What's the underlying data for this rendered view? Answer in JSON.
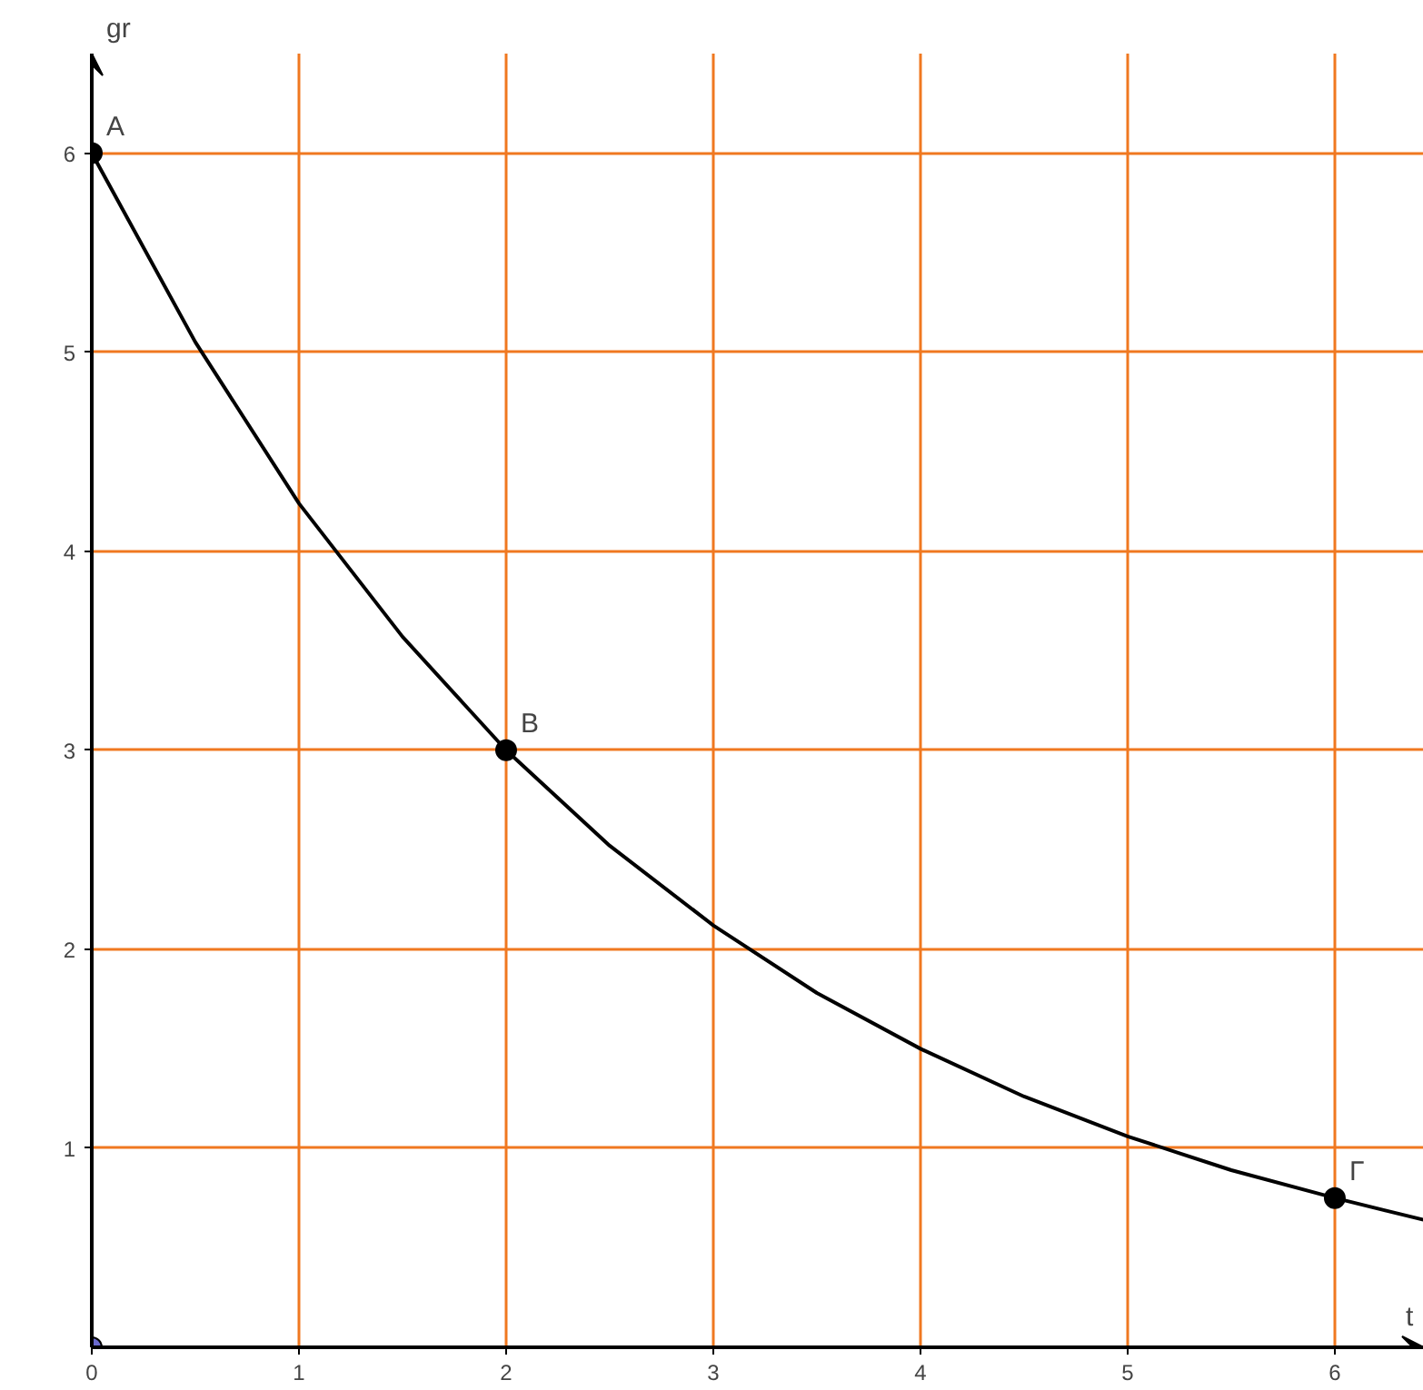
{
  "chart_data": {
    "type": "line",
    "xlabel": "t",
    "ylabel": "gr",
    "xlim": [
      0,
      6.43
    ],
    "ylim": [
      0,
      6.5
    ],
    "xticks": [
      0,
      1,
      2,
      3,
      4,
      5,
      6
    ],
    "yticks": [
      1,
      2,
      3,
      4,
      5,
      6
    ],
    "grid": true,
    "series": [
      {
        "marker": "none",
        "color": "#000000",
        "x": [
          0,
          0.5,
          1,
          1.5,
          2,
          2.5,
          3,
          3.5,
          4,
          4.5,
          5,
          5.5,
          6,
          6.43
        ],
        "values": [
          6,
          5.05,
          4.24,
          3.57,
          3,
          2.52,
          2.12,
          1.78,
          1.5,
          1.26,
          1.06,
          0.89,
          0.75,
          0.64
        ]
      },
      {
        "type": "scatter",
        "marker": "circle",
        "color": "#000000",
        "x": [
          0,
          2,
          6
        ],
        "values": [
          6,
          3,
          0.75
        ]
      },
      {
        "type": "scatter",
        "marker": "circle",
        "color": "#6a6acd",
        "x": [
          0
        ],
        "values": [
          0
        ]
      }
    ],
    "annotations": [
      {
        "text": "A",
        "x": 0,
        "y": 6
      },
      {
        "text": "B",
        "x": 2,
        "y": 3
      },
      {
        "text": "Γ",
        "x": 6,
        "y": 0.75
      }
    ]
  }
}
